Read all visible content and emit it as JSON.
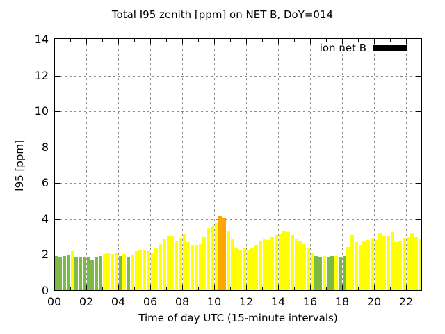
{
  "chart_data": {
    "type": "bar",
    "title": "Total I95 zenith [ppm] on NET B, DoY=014",
    "xlabel": "Time of day UTC (15-minute intervals)",
    "ylabel": "I95 [ppm]",
    "ylim": [
      0,
      14
    ],
    "xlim_hours": [
      0,
      23
    ],
    "grid": true,
    "interval_minutes": 15,
    "legend": {
      "label": "ion net B",
      "swatch_color": "#000000",
      "position": "top-right-inside"
    },
    "xtick_hours": [
      0,
      2,
      4,
      6,
      8,
      10,
      12,
      14,
      16,
      18,
      20,
      22
    ],
    "xtick_labels": [
      "00",
      "02",
      "04",
      "06",
      "08",
      "10",
      "12",
      "14",
      "16",
      "18",
      "20",
      "22"
    ],
    "ytick_values": [
      0,
      2,
      4,
      6,
      8,
      10,
      12,
      14
    ],
    "colors": {
      "yellow": "#FFFF00",
      "green": "#7CBA45",
      "orange": "#FFA500"
    },
    "bars": [
      {
        "t": "00:00",
        "v": 1.95,
        "c": "green"
      },
      {
        "t": "00:15",
        "v": 1.9,
        "c": "green"
      },
      {
        "t": "00:30",
        "v": 1.95,
        "c": "green"
      },
      {
        "t": "00:45",
        "v": 2.0,
        "c": "green"
      },
      {
        "t": "01:00",
        "v": 2.2,
        "c": "yellow"
      },
      {
        "t": "01:15",
        "v": 1.9,
        "c": "green"
      },
      {
        "t": "01:30",
        "v": 1.9,
        "c": "green"
      },
      {
        "t": "01:45",
        "v": 1.85,
        "c": "green"
      },
      {
        "t": "02:00",
        "v": 1.85,
        "c": "green"
      },
      {
        "t": "02:15",
        "v": 1.7,
        "c": "green"
      },
      {
        "t": "02:30",
        "v": 1.85,
        "c": "green"
      },
      {
        "t": "02:45",
        "v": 1.95,
        "c": "green"
      },
      {
        "t": "03:00",
        "v": 2.05,
        "c": "yellow"
      },
      {
        "t": "03:15",
        "v": 2.15,
        "c": "yellow"
      },
      {
        "t": "03:30",
        "v": 2.05,
        "c": "yellow"
      },
      {
        "t": "03:45",
        "v": 2.15,
        "c": "yellow"
      },
      {
        "t": "04:00",
        "v": 1.95,
        "c": "green"
      },
      {
        "t": "04:15",
        "v": 2.05,
        "c": "yellow"
      },
      {
        "t": "04:30",
        "v": 1.85,
        "c": "green"
      },
      {
        "t": "04:45",
        "v": 2.0,
        "c": "yellow"
      },
      {
        "t": "05:00",
        "v": 2.2,
        "c": "yellow"
      },
      {
        "t": "05:15",
        "v": 2.25,
        "c": "yellow"
      },
      {
        "t": "05:30",
        "v": 2.3,
        "c": "yellow"
      },
      {
        "t": "05:45",
        "v": 2.2,
        "c": "yellow"
      },
      {
        "t": "06:00",
        "v": 2.15,
        "c": "yellow"
      },
      {
        "t": "06:15",
        "v": 2.4,
        "c": "yellow"
      },
      {
        "t": "06:30",
        "v": 2.6,
        "c": "yellow"
      },
      {
        "t": "06:45",
        "v": 2.9,
        "c": "yellow"
      },
      {
        "t": "07:00",
        "v": 3.05,
        "c": "yellow"
      },
      {
        "t": "07:15",
        "v": 3.05,
        "c": "yellow"
      },
      {
        "t": "07:30",
        "v": 2.8,
        "c": "yellow"
      },
      {
        "t": "07:45",
        "v": 2.95,
        "c": "yellow"
      },
      {
        "t": "08:00",
        "v": 3.15,
        "c": "yellow"
      },
      {
        "t": "08:15",
        "v": 2.7,
        "c": "yellow"
      },
      {
        "t": "08:30",
        "v": 2.55,
        "c": "yellow"
      },
      {
        "t": "08:45",
        "v": 2.55,
        "c": "yellow"
      },
      {
        "t": "09:00",
        "v": 2.6,
        "c": "yellow"
      },
      {
        "t": "09:15",
        "v": 3.0,
        "c": "yellow"
      },
      {
        "t": "09:30",
        "v": 3.5,
        "c": "yellow"
      },
      {
        "t": "09:45",
        "v": 3.6,
        "c": "yellow"
      },
      {
        "t": "10:00",
        "v": 3.75,
        "c": "yellow"
      },
      {
        "t": "10:15",
        "v": 4.15,
        "c": "orange"
      },
      {
        "t": "10:30",
        "v": 4.05,
        "c": "orange"
      },
      {
        "t": "10:45",
        "v": 3.35,
        "c": "yellow"
      },
      {
        "t": "11:00",
        "v": 2.9,
        "c": "yellow"
      },
      {
        "t": "11:15",
        "v": 2.35,
        "c": "yellow"
      },
      {
        "t": "11:30",
        "v": 2.25,
        "c": "yellow"
      },
      {
        "t": "11:45",
        "v": 2.4,
        "c": "yellow"
      },
      {
        "t": "12:00",
        "v": 2.3,
        "c": "yellow"
      },
      {
        "t": "12:15",
        "v": 2.35,
        "c": "yellow"
      },
      {
        "t": "12:30",
        "v": 2.55,
        "c": "yellow"
      },
      {
        "t": "12:45",
        "v": 2.75,
        "c": "yellow"
      },
      {
        "t": "13:00",
        "v": 2.9,
        "c": "yellow"
      },
      {
        "t": "13:15",
        "v": 2.85,
        "c": "yellow"
      },
      {
        "t": "13:30",
        "v": 3.0,
        "c": "yellow"
      },
      {
        "t": "13:45",
        "v": 3.1,
        "c": "yellow"
      },
      {
        "t": "14:00",
        "v": 3.15,
        "c": "yellow"
      },
      {
        "t": "14:15",
        "v": 3.35,
        "c": "yellow"
      },
      {
        "t": "14:30",
        "v": 3.3,
        "c": "yellow"
      },
      {
        "t": "14:45",
        "v": 3.1,
        "c": "yellow"
      },
      {
        "t": "15:00",
        "v": 2.9,
        "c": "yellow"
      },
      {
        "t": "15:15",
        "v": 2.75,
        "c": "yellow"
      },
      {
        "t": "15:30",
        "v": 2.6,
        "c": "yellow"
      },
      {
        "t": "15:45",
        "v": 2.35,
        "c": "yellow"
      },
      {
        "t": "16:00",
        "v": 2.15,
        "c": "yellow"
      },
      {
        "t": "16:15",
        "v": 1.95,
        "c": "green"
      },
      {
        "t": "16:30",
        "v": 1.9,
        "c": "green"
      },
      {
        "t": "16:45",
        "v": 1.95,
        "c": "yellow"
      },
      {
        "t": "17:00",
        "v": 1.9,
        "c": "green"
      },
      {
        "t": "17:15",
        "v": 1.95,
        "c": "green"
      },
      {
        "t": "17:30",
        "v": 1.95,
        "c": "yellow"
      },
      {
        "t": "17:45",
        "v": 1.9,
        "c": "green"
      },
      {
        "t": "18:00",
        "v": 1.95,
        "c": "green"
      },
      {
        "t": "18:15",
        "v": 2.45,
        "c": "yellow"
      },
      {
        "t": "18:30",
        "v": 3.1,
        "c": "yellow"
      },
      {
        "t": "18:45",
        "v": 2.7,
        "c": "yellow"
      },
      {
        "t": "19:00",
        "v": 2.55,
        "c": "yellow"
      },
      {
        "t": "19:15",
        "v": 2.8,
        "c": "yellow"
      },
      {
        "t": "19:30",
        "v": 2.85,
        "c": "yellow"
      },
      {
        "t": "19:45",
        "v": 2.95,
        "c": "yellow"
      },
      {
        "t": "20:00",
        "v": 2.85,
        "c": "yellow"
      },
      {
        "t": "20:15",
        "v": 3.2,
        "c": "yellow"
      },
      {
        "t": "20:30",
        "v": 3.05,
        "c": "yellow"
      },
      {
        "t": "20:45",
        "v": 3.05,
        "c": "yellow"
      },
      {
        "t": "21:00",
        "v": 3.25,
        "c": "yellow"
      },
      {
        "t": "21:15",
        "v": 2.7,
        "c": "yellow"
      },
      {
        "t": "21:30",
        "v": 2.8,
        "c": "yellow"
      },
      {
        "t": "21:45",
        "v": 2.95,
        "c": "yellow"
      },
      {
        "t": "22:00",
        "v": 3.0,
        "c": "yellow"
      },
      {
        "t": "22:15",
        "v": 3.2,
        "c": "yellow"
      },
      {
        "t": "22:30",
        "v": 3.0,
        "c": "yellow"
      },
      {
        "t": "22:45",
        "v": 2.9,
        "c": "yellow"
      }
    ]
  }
}
